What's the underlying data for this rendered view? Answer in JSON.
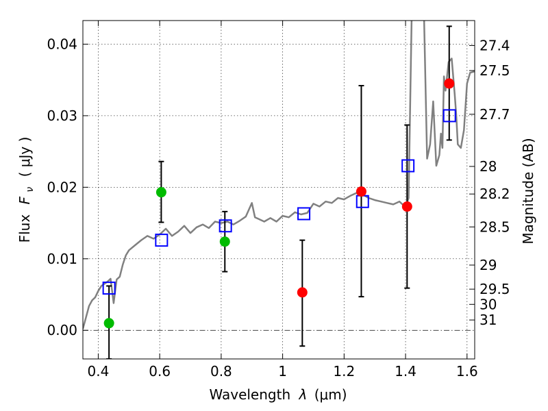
{
  "chart_data": {
    "type": "scatter",
    "xlabel_text": "Wavelength",
    "xlabel_symbol": "λ",
    "xlabel_unit": "(μm)",
    "ylabel_text": "Flux",
    "ylabel_symbol": "F",
    "ylabel_sub": "ν",
    "ylabel_unit": "( μJy )",
    "y2label": "Magnitude (AB)",
    "xlim": [
      0.35,
      1.625
    ],
    "ylim": [
      -0.004,
      0.0433
    ],
    "x_ticks": [
      0.4,
      0.6,
      0.8,
      1.0,
      1.2,
      1.4,
      1.6
    ],
    "x_tick_labels": [
      "0.4",
      "0.6",
      "0.8",
      "1",
      "1.2",
      "1.4",
      "1.6"
    ],
    "y_ticks": [
      0.0,
      0.01,
      0.02,
      0.03,
      0.04
    ],
    "y_tick_labels": [
      "0.00",
      "0.01",
      "0.02",
      "0.03",
      "0.04"
    ],
    "mag_ticks": [
      {
        "mag": 27.4,
        "label": "27.4"
      },
      {
        "mag": 27.5,
        "label": "27.5"
      },
      {
        "mag": 27.7,
        "label": "27.7"
      },
      {
        "mag": 28,
        "label": "28"
      },
      {
        "mag": 28.2,
        "label": "28.2"
      },
      {
        "mag": 28.5,
        "label": "28.5"
      },
      {
        "mag": 29,
        "label": "29"
      },
      {
        "mag": 29.5,
        "label": "29.5"
      },
      {
        "mag": 30,
        "label": "30"
      },
      {
        "mag": 31,
        "label": "31"
      }
    ],
    "grid": true,
    "colors": {
      "spectrum": "#808080",
      "green_points": "#00bb00",
      "red_points": "#ff0000",
      "model_squares": "#0000ff",
      "errorbars": "#000000"
    },
    "spectrum": {
      "x": [
        0.35,
        0.36,
        0.37,
        0.38,
        0.39,
        0.4,
        0.41,
        0.42,
        0.43,
        0.44,
        0.45,
        0.46,
        0.47,
        0.48,
        0.49,
        0.5,
        0.52,
        0.54,
        0.56,
        0.58,
        0.6,
        0.62,
        0.64,
        0.66,
        0.68,
        0.7,
        0.72,
        0.74,
        0.76,
        0.78,
        0.8,
        0.82,
        0.84,
        0.86,
        0.88,
        0.9,
        0.91,
        0.92,
        0.94,
        0.96,
        0.98,
        1.0,
        1.02,
        1.04,
        1.06,
        1.08,
        1.1,
        1.12,
        1.14,
        1.16,
        1.18,
        1.2,
        1.22,
        1.24,
        1.26,
        1.28,
        1.3,
        1.32,
        1.34,
        1.36,
        1.38,
        1.4,
        1.41,
        1.42,
        1.44,
        1.46,
        1.47,
        1.48,
        1.49,
        1.5,
        1.51,
        1.515,
        1.52,
        1.525,
        1.53,
        1.54,
        1.55,
        1.56,
        1.565,
        1.57,
        1.58,
        1.59,
        1.6,
        1.61,
        1.625
      ],
      "y": [
        0.0002,
        0.0018,
        0.0034,
        0.0042,
        0.0046,
        0.0055,
        0.0062,
        0.0065,
        0.0068,
        0.0072,
        0.0038,
        0.0071,
        0.0075,
        0.0092,
        0.0105,
        0.0112,
        0.0119,
        0.0126,
        0.0132,
        0.0128,
        0.0134,
        0.0142,
        0.0132,
        0.0138,
        0.0146,
        0.0136,
        0.0144,
        0.0148,
        0.0143,
        0.0152,
        0.015,
        0.0152,
        0.0148,
        0.0153,
        0.0159,
        0.0178,
        0.0158,
        0.0156,
        0.0152,
        0.0157,
        0.0152,
        0.016,
        0.0158,
        0.0165,
        0.0162,
        0.0164,
        0.0177,
        0.0173,
        0.018,
        0.0178,
        0.0185,
        0.0183,
        0.0188,
        0.0192,
        0.019,
        0.0185,
        0.0182,
        0.018,
        0.0178,
        0.0176,
        0.018,
        0.0172,
        0.0185,
        0.044,
        0.044,
        0.044,
        0.024,
        0.026,
        0.032,
        0.023,
        0.0245,
        0.0275,
        0.0255,
        0.0355,
        0.0335,
        0.0375,
        0.038,
        0.033,
        0.03,
        0.026,
        0.0255,
        0.028,
        0.0345,
        0.036,
        0.0362
      ]
    },
    "green_points": [
      {
        "x": 0.435,
        "y": 0.001,
        "ylo": -0.004,
        "yhi": 0.0062
      },
      {
        "x": 0.605,
        "y": 0.0193,
        "ylo": 0.0151,
        "yhi": 0.0236
      },
      {
        "x": 0.812,
        "y": 0.0124,
        "ylo": 0.0082,
        "yhi": 0.0166
      }
    ],
    "red_points": [
      {
        "x": 1.064,
        "y": 0.0053,
        "ylo": -0.0022,
        "yhi": 0.0126
      },
      {
        "x": 1.256,
        "y": 0.0194,
        "ylo": 0.0047,
        "yhi": 0.0342
      },
      {
        "x": 1.405,
        "y": 0.0173,
        "ylo": 0.0059,
        "yhi": 0.0287
      },
      {
        "x": 1.542,
        "y": 0.0345,
        "ylo": 0.0266,
        "yhi": 0.0425
      }
    ],
    "model_squares": [
      {
        "x": 0.435,
        "y": 0.0059
      },
      {
        "x": 0.606,
        "y": 0.0126
      },
      {
        "x": 0.814,
        "y": 0.0146
      },
      {
        "x": 1.069,
        "y": 0.0163
      },
      {
        "x": 1.26,
        "y": 0.018
      },
      {
        "x": 1.408,
        "y": 0.023
      },
      {
        "x": 1.543,
        "y": 0.03
      }
    ]
  }
}
